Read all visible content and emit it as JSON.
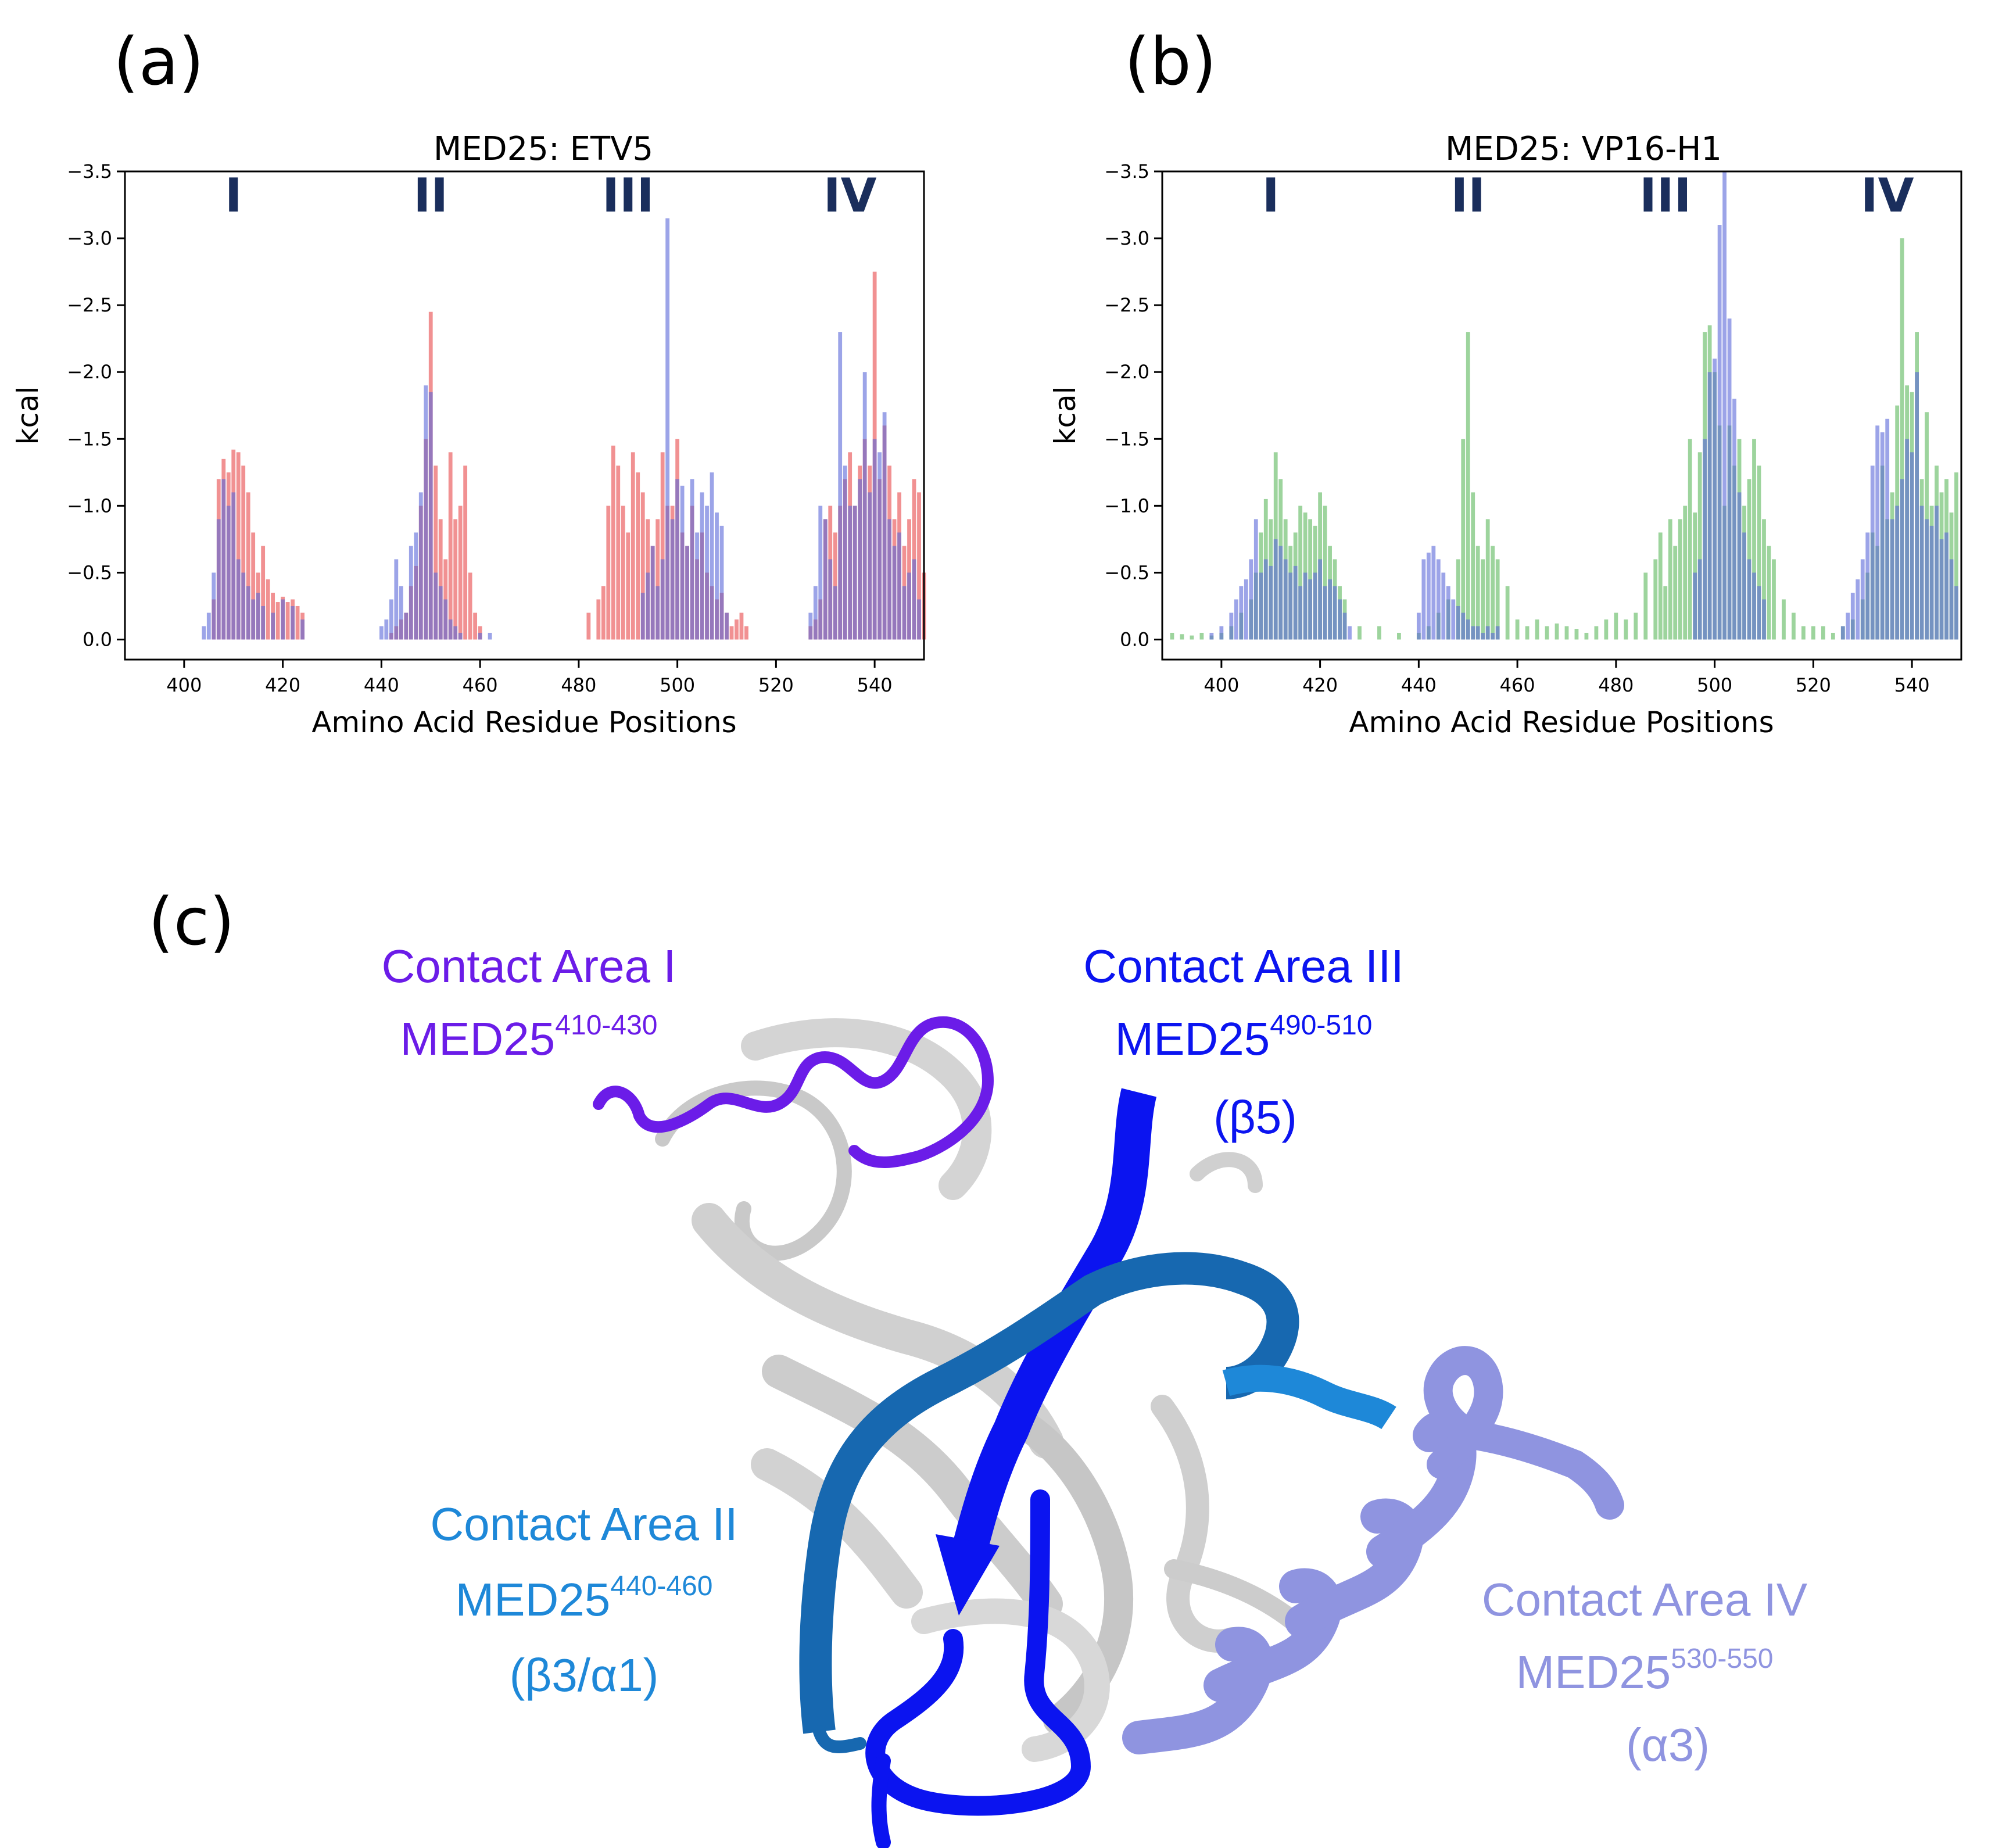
{
  "panels": {
    "a": "(a)",
    "b": "(b)",
    "c": "(c)"
  },
  "colors": {
    "red": "#e8474a",
    "blue": "#5a68d8",
    "green": "#5cb85c",
    "contact_I": "#6b1ce8",
    "contact_II": "#1e88d8",
    "contact_III": "#0b14f0",
    "contact_IV": "#8f94e0",
    "region_label": "#1a2e5c"
  },
  "chart_data": [
    {
      "type": "bar",
      "title": "MED25: ETV5",
      "xlabel": "Amino Acid Residue Positions",
      "ylabel": "kcal",
      "xlim": [
        388,
        550
      ],
      "ylim": [
        0.15,
        -3.5
      ],
      "xticks": [
        400,
        420,
        440,
        460,
        480,
        500,
        520,
        540
      ],
      "yticks": [
        -3.5,
        -3.0,
        -2.5,
        -2.0,
        -1.5,
        -1.0,
        -0.5,
        0.0
      ],
      "ytick_labels": [
        "−3.5",
        "−3.0",
        "−2.5",
        "−2.0",
        "−1.5",
        "−1.0",
        "−0.5",
        "0.0"
      ],
      "regions": [
        "I",
        "II",
        "III",
        "IV"
      ],
      "region_positions": [
        410,
        450,
        490,
        535
      ],
      "series": [
        {
          "name": "Red",
          "color": "#e8474a",
          "x": [
            406,
            407,
            408,
            409,
            410,
            411,
            412,
            413,
            414,
            415,
            416,
            417,
            418,
            419,
            420,
            421,
            422,
            423,
            424,
            442,
            443,
            444,
            445,
            446,
            447,
            448,
            449,
            450,
            451,
            452,
            453,
            454,
            455,
            456,
            457,
            458,
            459,
            460,
            482,
            484,
            485,
            486,
            487,
            488,
            489,
            490,
            491,
            492,
            493,
            494,
            495,
            496,
            497,
            498,
            499,
            500,
            501,
            502,
            503,
            504,
            505,
            506,
            507,
            508,
            509,
            510,
            511,
            512,
            513,
            514,
            527,
            528,
            529,
            530,
            531,
            532,
            533,
            534,
            535,
            536,
            537,
            538,
            539,
            540,
            541,
            542,
            543,
            544,
            545,
            546,
            547,
            548,
            549,
            550
          ],
          "values": [
            -0.3,
            -1.2,
            -1.35,
            -1.25,
            -1.42,
            -1.4,
            -1.3,
            -1.1,
            -0.8,
            -0.5,
            -0.7,
            -0.45,
            -0.35,
            -0.28,
            -0.32,
            -0.28,
            -0.3,
            -0.25,
            -0.2,
            -0.05,
            -0.1,
            -0.15,
            -0.2,
            -0.4,
            -0.55,
            -1.0,
            -1.5,
            -2.45,
            -1.3,
            -0.9,
            -0.6,
            -1.4,
            -0.9,
            -1.0,
            -1.3,
            -0.5,
            -0.2,
            -0.1,
            -0.2,
            -0.3,
            -0.4,
            -1.0,
            -1.45,
            -1.3,
            -1.0,
            -0.8,
            -1.4,
            -1.25,
            -1.1,
            -0.9,
            -0.7,
            -0.9,
            -1.4,
            -1.0,
            -1.0,
            -1.5,
            -0.8,
            -0.7,
            -1.0,
            -0.6,
            -0.8,
            -0.5,
            -0.4,
            -0.3,
            -0.35,
            -0.2,
            -0.1,
            -0.15,
            -0.2,
            -0.1,
            -0.1,
            -0.15,
            -0.3,
            -0.9,
            -1.0,
            -0.8,
            -1.0,
            -1.2,
            -1.4,
            -1.0,
            -1.3,
            -1.5,
            -1.3,
            -2.75,
            -1.2,
            -1.6,
            -1.3,
            -0.9,
            -1.1,
            -0.7,
            -0.9,
            -1.2,
            -1.1,
            -0.5
          ]
        },
        {
          "name": "Blue",
          "color": "#5a68d8",
          "x": [
            404,
            405,
            406,
            407,
            408,
            409,
            410,
            411,
            412,
            413,
            414,
            415,
            416,
            418,
            420,
            422,
            424,
            440,
            441,
            442,
            443,
            444,
            445,
            446,
            447,
            448,
            449,
            450,
            451,
            452,
            453,
            454,
            455,
            456,
            460,
            462,
            493,
            494,
            495,
            496,
            497,
            498,
            499,
            500,
            501,
            502,
            503,
            504,
            505,
            506,
            507,
            508,
            509,
            510,
            527,
            528,
            529,
            530,
            531,
            532,
            533,
            534,
            535,
            536,
            537,
            538,
            539,
            540,
            541,
            542,
            543,
            544,
            545,
            546,
            547,
            548,
            549
          ],
          "values": [
            -0.1,
            -0.2,
            -0.5,
            -0.9,
            -1.2,
            -1.0,
            -1.1,
            -0.6,
            -0.5,
            -0.4,
            -0.3,
            -0.35,
            -0.25,
            -0.2,
            -0.3,
            -0.25,
            -0.15,
            -0.1,
            -0.15,
            -0.3,
            -0.6,
            -0.4,
            -0.2,
            -0.7,
            -0.8,
            -1.1,
            -1.9,
            -1.85,
            -0.5,
            -0.4,
            -0.3,
            -0.15,
            -0.1,
            -0.05,
            -0.05,
            -0.05,
            -0.35,
            -0.5,
            -0.7,
            -0.4,
            -0.6,
            -3.15,
            -0.9,
            -1.2,
            -1.15,
            -0.7,
            -1.2,
            -0.8,
            -1.1,
            -1.0,
            -1.25,
            -0.95,
            -0.85,
            -0.2,
            -0.2,
            -0.4,
            -1.0,
            -0.9,
            -0.6,
            -0.4,
            -2.3,
            -1.3,
            -1.0,
            -1.0,
            -1.2,
            -2.0,
            -1.1,
            -1.5,
            -1.4,
            -1.7,
            -0.9,
            -0.7,
            -0.8,
            -0.4,
            -0.5,
            -0.6,
            -0.3
          ]
        }
      ]
    },
    {
      "type": "bar",
      "title": "MED25: VP16-H1",
      "xlabel": "Amino Acid Residue Positions",
      "ylabel": "kcal",
      "xlim": [
        388,
        550
      ],
      "ylim": [
        0.15,
        -3.5
      ],
      "xticks": [
        400,
        420,
        440,
        460,
        480,
        500,
        520,
        540
      ],
      "yticks": [
        -3.5,
        -3.0,
        -2.5,
        -2.0,
        -1.5,
        -1.0,
        -0.5,
        0.0
      ],
      "ytick_labels": [
        "−3.5",
        "−3.0",
        "−2.5",
        "−2.0",
        "−1.5",
        "−1.0",
        "−0.5",
        "0.0"
      ],
      "regions": [
        "I",
        "II",
        "III",
        "IV"
      ],
      "region_positions": [
        410,
        450,
        490,
        535
      ],
      "series": [
        {
          "name": "Green",
          "color": "#5cb85c",
          "x": [
            390,
            392,
            394,
            396,
            398,
            400,
            402,
            404,
            406,
            407,
            408,
            409,
            410,
            411,
            412,
            413,
            414,
            415,
            416,
            417,
            418,
            419,
            420,
            421,
            422,
            423,
            424,
            425,
            428,
            432,
            436,
            440,
            442,
            444,
            446,
            448,
            449,
            450,
            451,
            452,
            453,
            454,
            455,
            456,
            458,
            460,
            462,
            464,
            466,
            468,
            470,
            472,
            474,
            476,
            478,
            480,
            482,
            484,
            486,
            488,
            489,
            490,
            491,
            492,
            493,
            494,
            495,
            496,
            497,
            498,
            499,
            500,
            501,
            502,
            503,
            504,
            505,
            506,
            507,
            508,
            509,
            510,
            511,
            512,
            514,
            516,
            518,
            520,
            522,
            524,
            526,
            528,
            530,
            531,
            532,
            533,
            534,
            535,
            536,
            537,
            538,
            539,
            540,
            541,
            542,
            543,
            544,
            545,
            546,
            547,
            548,
            549
          ],
          "values": [
            -0.05,
            -0.04,
            -0.03,
            -0.05,
            -0.03,
            -0.05,
            -0.1,
            -0.2,
            -0.3,
            -0.5,
            -0.8,
            -1.05,
            -0.9,
            -1.4,
            -1.2,
            -0.9,
            -0.7,
            -0.8,
            -1.0,
            -0.95,
            -0.9,
            -0.85,
            -1.1,
            -1.0,
            -0.7,
            -0.6,
            -0.4,
            -0.3,
            -0.1,
            -0.1,
            -0.05,
            -0.05,
            -0.1,
            -0.2,
            -0.3,
            -0.6,
            -1.5,
            -2.3,
            -1.1,
            -0.7,
            -0.6,
            -0.9,
            -0.7,
            -0.6,
            -0.4,
            -0.15,
            -0.1,
            -0.15,
            -0.1,
            -0.12,
            -0.1,
            -0.08,
            -0.05,
            -0.1,
            -0.15,
            -0.2,
            -0.15,
            -0.2,
            -0.5,
            -0.6,
            -0.8,
            -0.4,
            -0.9,
            -0.7,
            -0.9,
            -1.0,
            -1.5,
            -0.95,
            -1.4,
            -2.3,
            -2.35,
            -2.0,
            -1.6,
            -1.0,
            -1.6,
            -1.3,
            -1.5,
            -1.0,
            -1.2,
            -1.5,
            -1.3,
            -0.9,
            -0.7,
            -0.6,
            -0.3,
            -0.2,
            -0.1,
            -0.1,
            -0.1,
            -0.05,
            -0.1,
            -0.15,
            -0.3,
            -0.5,
            -0.8,
            -0.7,
            -1.3,
            -0.9,
            -1.1,
            -1.75,
            -3.0,
            -1.9,
            -1.85,
            -2.3,
            -1.2,
            -1.7,
            -1.0,
            -1.3,
            -1.1,
            -1.2,
            -0.95,
            -1.25
          ]
        },
        {
          "name": "Blue",
          "color": "#5a68d8",
          "x": [
            398,
            400,
            402,
            403,
            404,
            405,
            406,
            407,
            408,
            409,
            410,
            411,
            412,
            413,
            414,
            415,
            416,
            417,
            418,
            419,
            420,
            421,
            422,
            423,
            424,
            425,
            426,
            440,
            441,
            442,
            443,
            444,
            445,
            446,
            447,
            448,
            449,
            450,
            451,
            452,
            453,
            454,
            455,
            456,
            496,
            497,
            498,
            499,
            500,
            501,
            502,
            503,
            504,
            505,
            506,
            507,
            508,
            509,
            510,
            526,
            527,
            528,
            529,
            530,
            531,
            532,
            533,
            534,
            535,
            536,
            537,
            538,
            539,
            540,
            541,
            542,
            543,
            544,
            545,
            546,
            547,
            548,
            549
          ],
          "values": [
            -0.05,
            -0.1,
            -0.2,
            -0.3,
            -0.4,
            -0.45,
            -0.6,
            -0.9,
            -0.5,
            -0.6,
            -0.55,
            -0.75,
            -0.7,
            -0.6,
            -0.5,
            -0.55,
            -0.4,
            -0.5,
            -0.45,
            -0.5,
            -0.6,
            -0.4,
            -0.45,
            -0.4,
            -0.3,
            -0.2,
            -0.1,
            -0.2,
            -0.6,
            -0.65,
            -0.7,
            -0.6,
            -0.5,
            -0.4,
            -0.3,
            -0.25,
            -0.2,
            -0.15,
            -0.1,
            -0.1,
            -0.05,
            -0.1,
            -0.05,
            -0.1,
            -0.5,
            -0.6,
            -1.5,
            -2.0,
            -2.1,
            -3.1,
            -3.5,
            -2.4,
            -1.8,
            -1.1,
            -0.8,
            -0.6,
            -0.5,
            -0.4,
            -0.3,
            -0.1,
            -0.2,
            -0.35,
            -0.45,
            -0.6,
            -0.8,
            -1.3,
            -1.6,
            -1.55,
            -1.65,
            -0.9,
            -1.0,
            -1.2,
            -1.5,
            -1.4,
            -2.0,
            -1.0,
            -0.9,
            -0.85,
            -1.0,
            -0.75,
            -0.8,
            -0.6,
            -0.4
          ]
        }
      ]
    }
  ],
  "structure": {
    "contact_I": {
      "title": "Contact Area I",
      "med": "MED25",
      "range": "410-430"
    },
    "contact_II": {
      "title": "Contact Area II",
      "med": "MED25",
      "range": "440-460",
      "element": "(β3/α1)"
    },
    "contact_III": {
      "title": "Contact Area III",
      "med": "MED25",
      "range": "490-510",
      "element": "(β5)"
    },
    "contact_IV": {
      "title": "Contact Area IV",
      "med": "MED25",
      "range": "530-550",
      "element": "(α3)"
    }
  }
}
